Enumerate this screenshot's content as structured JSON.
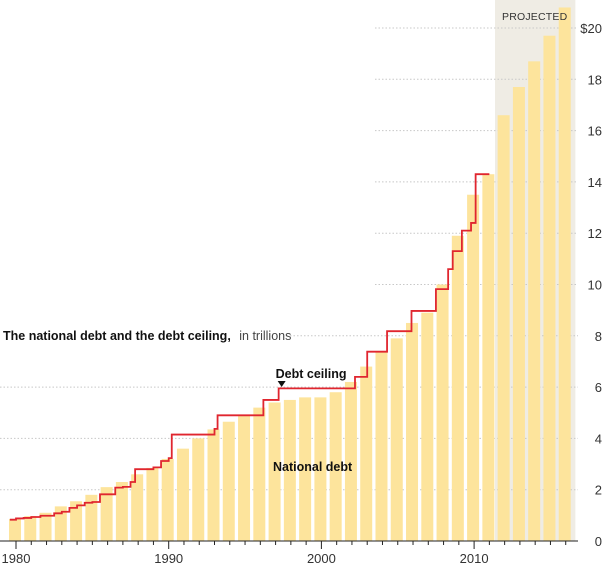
{
  "chart_data": {
    "type": "bar",
    "title": "The national debt and the debt ceiling,",
    "subtitle": "in trillions",
    "xlabel": "",
    "ylabel": "",
    "ylim": [
      0,
      21
    ],
    "xlim": [
      1980,
      2016
    ],
    "grid": true,
    "y_ticks": [
      0,
      2,
      4,
      6,
      8,
      10,
      12,
      14,
      16,
      18,
      20
    ],
    "y_tick_labels": [
      "0",
      "2",
      "4",
      "6",
      "8",
      "10",
      "12",
      "14",
      "16",
      "18",
      "$20"
    ],
    "x_tick_labels": [
      "1980",
      "1990",
      "2000",
      "2010"
    ],
    "x_tick_values": [
      1980,
      1990,
      2000,
      2010
    ],
    "categories": [
      1980,
      1981,
      1982,
      1983,
      1984,
      1985,
      1986,
      1987,
      1988,
      1989,
      1990,
      1991,
      1992,
      1993,
      1994,
      1995,
      1996,
      1997,
      1998,
      1999,
      2000,
      2001,
      2002,
      2003,
      2004,
      2005,
      2006,
      2007,
      2008,
      2009,
      2010,
      2011,
      2012,
      2013,
      2014,
      2015,
      2016
    ],
    "series": [
      {
        "name": "National debt",
        "kind": "bar",
        "color": "#fde49c",
        "values": [
          0.86,
          0.97,
          1.1,
          1.35,
          1.55,
          1.8,
          2.1,
          2.3,
          2.6,
          2.85,
          3.2,
          3.6,
          4.0,
          4.35,
          4.65,
          4.9,
          5.2,
          5.4,
          5.5,
          5.6,
          5.6,
          5.8,
          6.2,
          6.8,
          7.4,
          7.9,
          8.5,
          8.9,
          10.0,
          11.9,
          13.5,
          14.3,
          16.6,
          17.7,
          18.7,
          19.7,
          20.8
        ]
      },
      {
        "name": "Debt ceiling",
        "kind": "step-line",
        "color": "#e0262f",
        "points": [
          [
            1979.6,
            0.83
          ],
          [
            1980.0,
            0.88
          ],
          [
            1980.5,
            0.9
          ],
          [
            1981.0,
            0.935
          ],
          [
            1981.6,
            0.985
          ],
          [
            1982.5,
            1.08
          ],
          [
            1983.0,
            1.14
          ],
          [
            1983.5,
            1.29
          ],
          [
            1984.0,
            1.39
          ],
          [
            1984.5,
            1.49
          ],
          [
            1985.0,
            1.52
          ],
          [
            1985.5,
            1.82
          ],
          [
            1986.5,
            2.08
          ],
          [
            1987.0,
            2.11
          ],
          [
            1987.5,
            2.3
          ],
          [
            1987.8,
            2.8
          ],
          [
            1989.0,
            2.87
          ],
          [
            1989.5,
            3.12
          ],
          [
            1990.0,
            3.23
          ],
          [
            1990.2,
            4.15
          ],
          [
            1993.0,
            4.37
          ],
          [
            1993.2,
            4.9
          ],
          [
            1996.2,
            5.5
          ],
          [
            1997.2,
            5.95
          ],
          [
            2002.2,
            6.4
          ],
          [
            2003.0,
            7.38
          ],
          [
            2004.3,
            8.18
          ],
          [
            2005.9,
            8.97
          ],
          [
            2007.5,
            9.82
          ],
          [
            2008.3,
            10.6
          ],
          [
            2008.6,
            11.3
          ],
          [
            2009.2,
            12.1
          ],
          [
            2009.8,
            12.4
          ],
          [
            2010.1,
            14.3
          ],
          [
            2011.0,
            14.3
          ]
        ]
      }
    ],
    "projected_region": {
      "label": "PROJECTED",
      "from": 2011.5,
      "to": 2016.5,
      "color": "#efece4"
    },
    "annotations": [
      {
        "text": "Debt ceiling",
        "x": 1997.2,
        "y": 6.5,
        "marker": "triangle-down"
      },
      {
        "text": "National debt",
        "x": 2000,
        "y": 2.9
      }
    ]
  }
}
